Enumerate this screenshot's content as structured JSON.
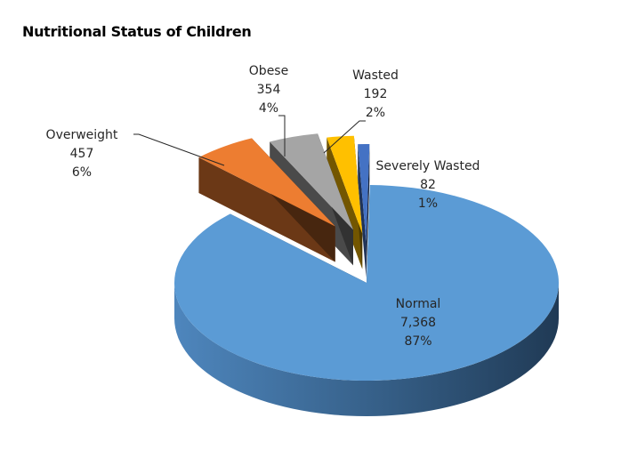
{
  "chart_data": {
    "type": "pie",
    "title": "Nutritional Status of Children",
    "style": "3d-exploded",
    "slices": [
      {
        "name": "Normal",
        "value": 7368,
        "value_label": "7,368",
        "percent_label": "87%",
        "color": "#5B9BD5"
      },
      {
        "name": "Overweight",
        "value": 457,
        "value_label": "457",
        "percent_label": "6%",
        "color": "#ED7D31"
      },
      {
        "name": "Obese",
        "value": 354,
        "value_label": "354",
        "percent_label": "4%",
        "color": "#A5A5A5"
      },
      {
        "name": "Wasted",
        "value": 192,
        "value_label": "192",
        "percent_label": "2%",
        "color": "#FFC000"
      },
      {
        "name": "Severely Wasted",
        "value": 82,
        "value_label": "82",
        "percent_label": "1%",
        "color": "#4472C4"
      }
    ],
    "legend": "none"
  }
}
